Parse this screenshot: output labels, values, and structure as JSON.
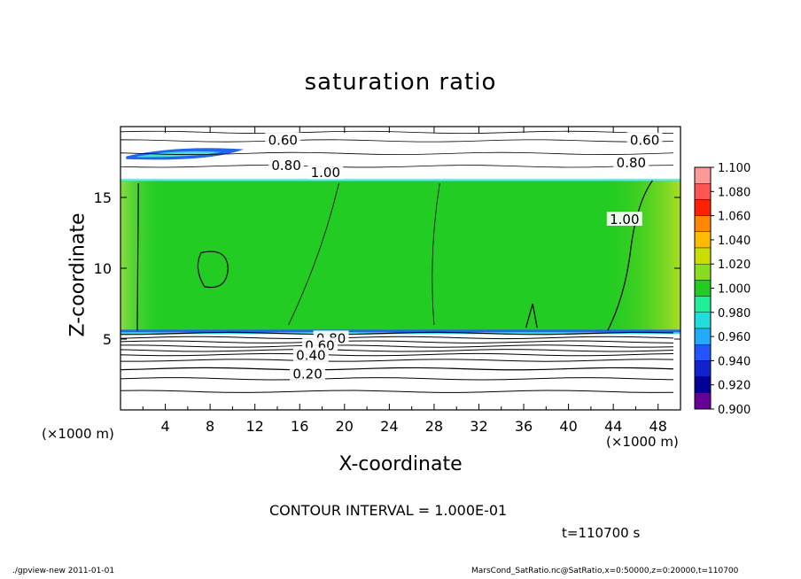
{
  "title": "saturation ratio",
  "footer": {
    "left": "./gpview-new   2011-01-01",
    "right": "MarsCond_SatRatio.nc@SatRatio,x=0:50000,z=0:20000,t=110700"
  },
  "contour_interval": "CONTOUR INTERVAL = 1.000E-01",
  "time_label": "t=110700 s",
  "colors": {
    "green": "#22cc22",
    "light_green": "#66dd44",
    "yellow_green": "#aadd22",
    "cyan": "#44dddd",
    "blue": "#2266ee"
  },
  "chart_data": {
    "type": "heatmap",
    "title": "saturation ratio",
    "xlabel": "X-coordinate",
    "ylabel": "Z-coordinate",
    "x_unit": "(×1000 m)",
    "y_unit": "(×1000 m)",
    "xlim": [
      0,
      50
    ],
    "ylim": [
      0,
      20
    ],
    "x_ticks": [
      4,
      8,
      12,
      16,
      20,
      24,
      28,
      32,
      36,
      40,
      44,
      48
    ],
    "y_ticks": [
      5,
      10,
      15
    ],
    "colorbar": {
      "levels": [
        "1.100",
        "1.080",
        "1.060",
        "1.040",
        "1.020",
        "1.000",
        "0.980",
        "0.960",
        "0.940",
        "0.920",
        "0.900"
      ],
      "colors": [
        "#ff9999",
        "#ff5555",
        "#ff2200",
        "#ff8800",
        "#ffbb00",
        "#ccdd00",
        "#88dd22",
        "#22cc22",
        "#22ee99",
        "#22dddd",
        "#22aaff",
        "#2255ff",
        "#1122cc",
        "#000099",
        "#660099"
      ]
    },
    "contour_labels": [
      {
        "text": "0.60",
        "x": 14.5,
        "z": 19.1
      },
      {
        "text": "0.80",
        "x": 14.8,
        "z": 17.3
      },
      {
        "text": "1.00",
        "x": 18.3,
        "z": 16.8
      },
      {
        "text": "0.60",
        "x": 46.8,
        "z": 19.1
      },
      {
        "text": "0.80",
        "x": 45.6,
        "z": 17.5
      },
      {
        "text": "1.00",
        "x": 45.0,
        "z": 13.5
      },
      {
        "text": "0.80",
        "x": 18.8,
        "z": 5.1
      },
      {
        "text": "0.60",
        "x": 17.8,
        "z": 4.6
      },
      {
        "text": "0.40",
        "x": 17.0,
        "z": 3.9
      },
      {
        "text": "0.20",
        "x": 16.7,
        "z": 2.6
      }
    ],
    "saturated_layer": {
      "z_bottom": 5.6,
      "z_top": 16.2,
      "value": 1.0
    }
  }
}
